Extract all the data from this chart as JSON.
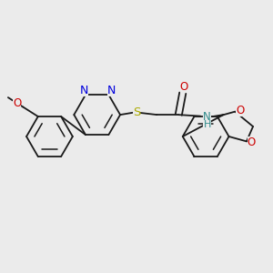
{
  "background_color": "#ebebeb",
  "bond_color": "#1a1a1a",
  "figsize": [
    3.0,
    3.0
  ],
  "dpi": 100,
  "xlim": [
    0,
    10
  ],
  "ylim": [
    0,
    10
  ],
  "bond_lw": 1.3,
  "inner_lw": 1.1,
  "font_size": 8.5
}
